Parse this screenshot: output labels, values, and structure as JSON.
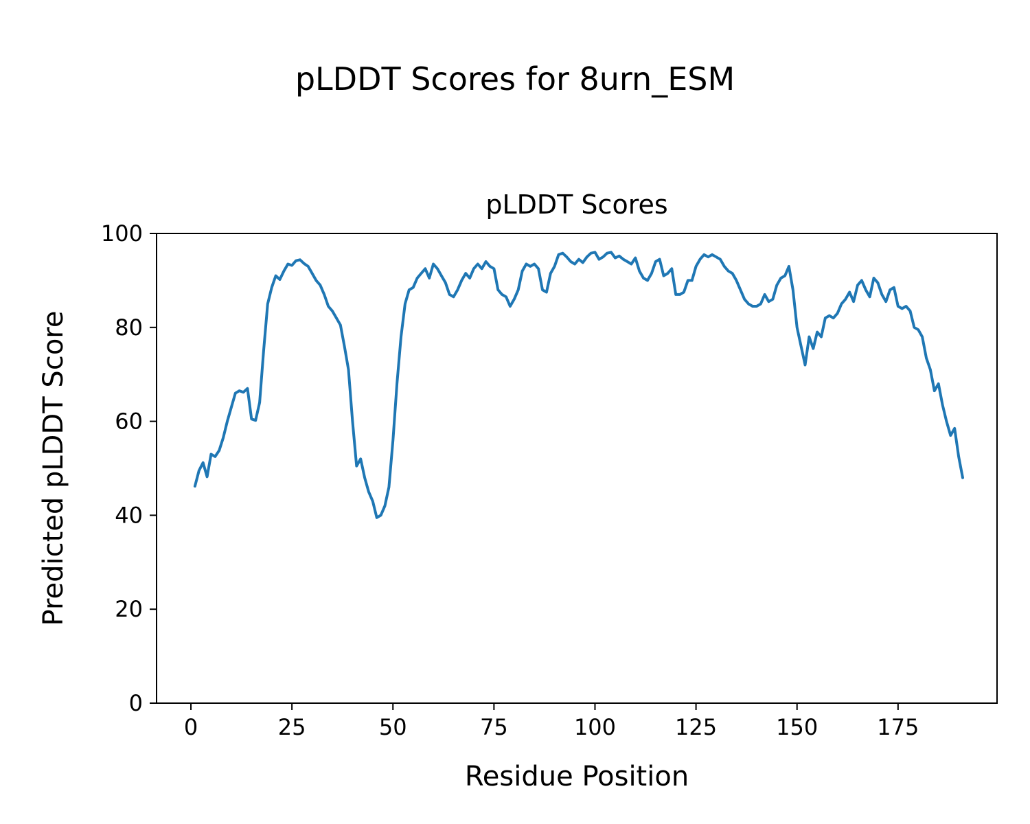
{
  "figure": {
    "suptitle": "pLDDT Scores for 8urn_ESM"
  },
  "chart_data": {
    "type": "line",
    "title": "pLDDT Scores",
    "xlabel": "Residue Position",
    "ylabel": "Predicted pLDDT Score",
    "xlim": [
      -8.5,
      199.5
    ],
    "ylim": [
      0,
      100
    ],
    "xticks": [
      0,
      25,
      50,
      75,
      100,
      125,
      150,
      175
    ],
    "yticks": [
      0,
      20,
      40,
      60,
      80,
      100
    ],
    "grid": false,
    "legend": "none",
    "line_color": "#1f77b4",
    "line_width": 4,
    "series": [
      {
        "name": "pLDDT",
        "x_start": 1,
        "x_step": 1,
        "values": [
          46.2,
          49.5,
          51.2,
          48.2,
          53.0,
          52.5,
          53.8,
          56.5,
          60.0,
          63.0,
          66.0,
          66.5,
          66.2,
          67.0,
          60.5,
          60.2,
          64.0,
          75.0,
          85.0,
          88.5,
          91.0,
          90.2,
          92.0,
          93.5,
          93.2,
          94.2,
          94.4,
          93.6,
          93.0,
          91.5,
          90.0,
          89.0,
          87.0,
          84.5,
          83.5,
          82.0,
          80.5,
          76.0,
          71.0,
          60.0,
          50.5,
          52.0,
          48.0,
          45.0,
          43.0,
          39.5,
          40.0,
          42.0,
          46.0,
          56.0,
          68.0,
          78.0,
          85.0,
          88.0,
          88.5,
          90.5,
          91.5,
          92.5,
          90.5,
          93.5,
          92.5,
          91.0,
          89.5,
          87.0,
          86.5,
          88.0,
          90.0,
          91.5,
          90.5,
          92.5,
          93.5,
          92.5,
          94.0,
          93.0,
          92.5,
          88.0,
          87.0,
          86.5,
          84.5,
          86.0,
          88.0,
          92.0,
          93.5,
          93.0,
          93.5,
          92.5,
          88.0,
          87.5,
          91.5,
          93.0,
          95.5,
          95.8,
          95.0,
          94.0,
          93.5,
          94.5,
          93.8,
          95.0,
          95.8,
          96.0,
          94.5,
          95.0,
          95.8,
          96.0,
          94.8,
          95.2,
          94.5,
          94.0,
          93.5,
          94.8,
          92.0,
          90.5,
          90.0,
          91.5,
          94.0,
          94.5,
          91.0,
          91.5,
          92.5,
          87.0,
          87.0,
          87.5,
          90.0,
          90.0,
          93.0,
          94.5,
          95.5,
          95.0,
          95.5,
          95.0,
          94.5,
          93.0,
          92.0,
          91.5,
          90.0,
          88.0,
          86.0,
          85.0,
          84.5,
          84.5,
          85.0,
          87.0,
          85.5,
          86.0,
          89.0,
          90.5,
          91.0,
          93.0,
          88.0,
          80.0,
          76.0,
          72.0,
          78.0,
          75.5,
          79.0,
          78.0,
          82.0,
          82.5,
          82.0,
          83.0,
          85.0,
          86.0,
          87.5,
          85.5,
          89.0,
          90.0,
          88.0,
          86.5,
          90.5,
          89.5,
          87.0,
          85.5,
          88.0,
          88.5,
          84.5,
          84.0,
          84.5,
          83.5,
          80.0,
          79.5,
          78.0,
          73.5,
          71.0,
          66.5,
          68.0,
          63.5,
          60.0,
          57.0,
          58.5,
          52.5,
          48.0
        ]
      }
    ]
  }
}
